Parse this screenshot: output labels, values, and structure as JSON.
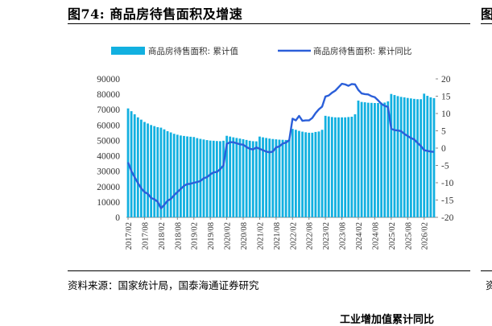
{
  "figure": {
    "title": "图74:  商品房待售面积及增速",
    "source": "资料来源：国家统计局，国泰海通证券研究"
  },
  "neighbor": {
    "title": "图",
    "source": "资",
    "footer_fragment": "工业增加值累计同比"
  },
  "colors": {
    "bar": "#12b0e0",
    "line": "#2b5fd9"
  },
  "chart_data": {
    "type": "bar",
    "title": "",
    "xlabel": "",
    "ylabel": "",
    "grid": false,
    "legend_position": "top",
    "x_tick_labels": [
      "2017/02",
      "2017/08",
      "2018/02",
      "2018/08",
      "2019/02",
      "2019/08",
      "2020/02",
      "2020/08",
      "2021/02",
      "2021/08",
      "2022/02",
      "2022/08",
      "2023/02",
      "2023/08",
      "2024/02",
      "2024/08",
      "2025/02",
      "2025/08",
      "2026/02"
    ],
    "ylim_left": [
      0,
      90000
    ],
    "yticks_left": [
      "90000",
      "80000",
      "70000",
      "60000",
      "50000",
      "40000",
      "30000",
      "20000",
      "10000",
      "0"
    ],
    "ylim_right": [
      -20,
      20
    ],
    "yticks_right": [
      "20",
      "15",
      "10",
      "5",
      "0",
      "-5",
      "-10",
      "-15",
      "-20"
    ],
    "series": [
      {
        "name": "商品房待售面积: 累计值",
        "type": "bar",
        "axis": "left",
        "values": [
          70800,
          69000,
          67000,
          65000,
          63500,
          62000,
          61000,
          60000,
          59300,
          58600,
          58300,
          57200,
          56000,
          55200,
          54300,
          53700,
          53200,
          52900,
          52600,
          52400,
          52200,
          51500,
          51000,
          50600,
          50200,
          49900,
          49800,
          49600,
          49500,
          49800,
          53000,
          52500,
          52000,
          51600,
          51200,
          50800,
          50300,
          49800,
          49500,
          49400,
          52500,
          52000,
          51600,
          51200,
          50900,
          50700,
          50500,
          50400,
          50300,
          50600,
          57500,
          56900,
          56200,
          55700,
          55300,
          55000,
          55000,
          55500,
          55800,
          56900,
          66000,
          65600,
          65200,
          65000,
          65000,
          65000,
          65000,
          65200,
          65400,
          67000,
          75900,
          75000,
          74800,
          74500,
          74400,
          74300,
          74300,
          74500,
          74600,
          75400,
          80200,
          79500,
          78800,
          78300,
          78000,
          77600,
          77300,
          77000,
          76800,
          76800,
          80400,
          79000,
          78000,
          77500
        ]
      },
      {
        "name": "商品房待售面积: 累计同比",
        "type": "line",
        "axis": "right",
        "values": [
          -4.1,
          -6.6,
          -8.4,
          -10.1,
          -11.6,
          -12.7,
          -13.2,
          -14.4,
          -14.8,
          -15.5,
          -17.4,
          -16.4,
          -15.2,
          -14.7,
          -13.6,
          -12.7,
          -11.8,
          -10.9,
          -10.4,
          -10.3,
          -10.0,
          -9.8,
          -9.5,
          -8.7,
          -8.4,
          -7.6,
          -7.0,
          -6.9,
          -6.1,
          -5.0,
          1.2,
          1.7,
          1.7,
          1.4,
          1.1,
          1.0,
          0.3,
          -0.2,
          -0.4,
          0.2,
          -0.2,
          -0.6,
          -1.0,
          -1.2,
          -1.0,
          0.2,
          0.5,
          1.3,
          1.6,
          2.3,
          8.5,
          8.0,
          9.3,
          7.9,
          8.0,
          8.0,
          8.7,
          10.1,
          11.2,
          12.0,
          14.9,
          15.2,
          16.0,
          16.6,
          17.6,
          18.6,
          18.4,
          18.0,
          18.5,
          18.4,
          16.8,
          15.8,
          15.6,
          15.5,
          15.0,
          14.7,
          13.8,
          12.8,
          12.2,
          11.9,
          5.6,
          5.2,
          5.1,
          4.9,
          4.1,
          3.5,
          2.9,
          2.5,
          1.5,
          0.6,
          -0.6,
          -0.8,
          -1.0,
          -1.1
        ]
      }
    ]
  }
}
